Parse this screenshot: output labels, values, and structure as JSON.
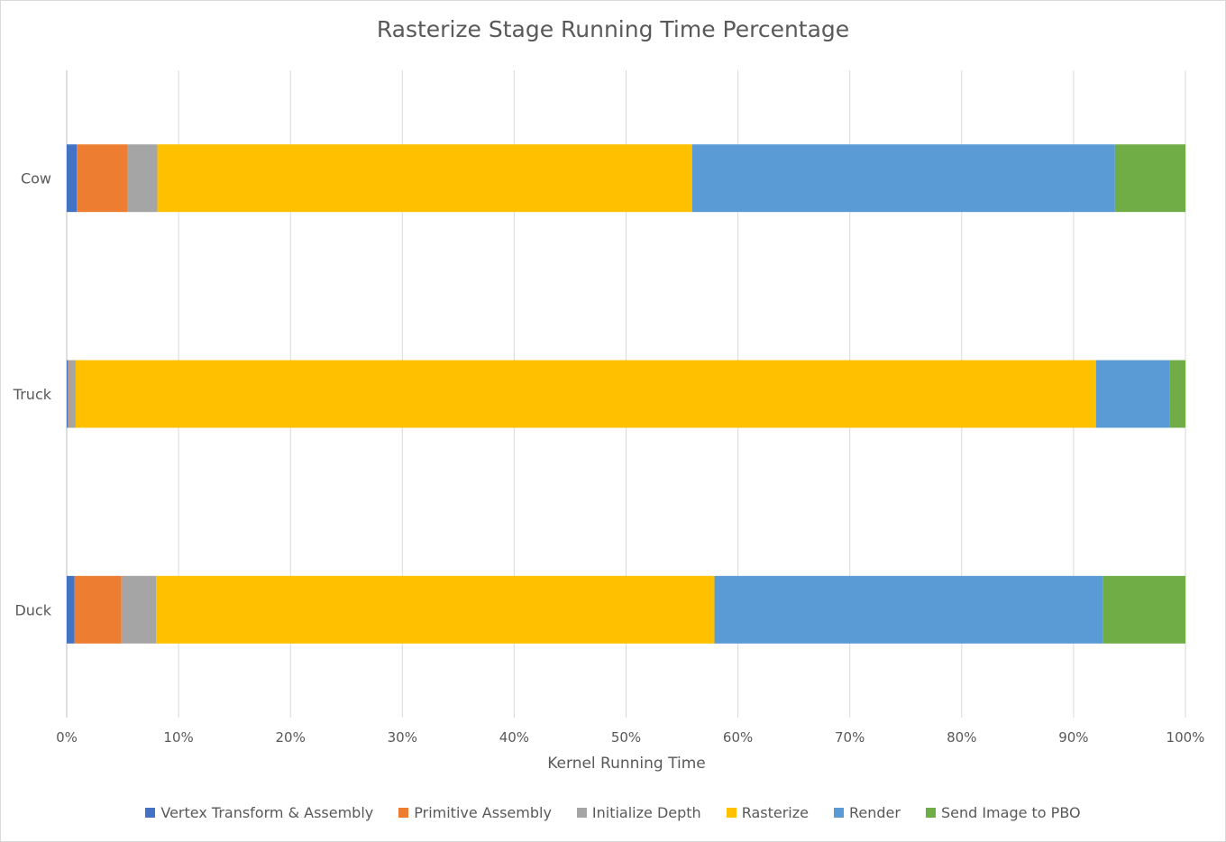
{
  "chart_data": {
    "type": "bar",
    "orientation": "horizontal",
    "stacked": true,
    "percent_stacked": true,
    "title": "Rasterize Stage Running Time Percentage",
    "xlabel": "Kernel Running Time",
    "ylabel": "",
    "xlim": [
      0,
      100
    ],
    "x_ticks": [
      "0%",
      "10%",
      "20%",
      "30%",
      "40%",
      "50%",
      "60%",
      "70%",
      "80%",
      "90%",
      "100%"
    ],
    "categories": [
      "Cow",
      "Truck",
      "Duck"
    ],
    "series": [
      {
        "name": "Vertex Transform & Assembly",
        "color": "#4472c4",
        "values": [
          0.9,
          0.1,
          0.7
        ]
      },
      {
        "name": "Primitive Assembly",
        "color": "#ed7d31",
        "values": [
          4.5,
          0.1,
          4.2
        ]
      },
      {
        "name": "Initialize Depth",
        "color": "#a5a5a5",
        "values": [
          2.7,
          0.6,
          3.1
        ]
      },
      {
        "name": "Rasterize",
        "color": "#ffc000",
        "values": [
          47.8,
          91.2,
          49.9
        ]
      },
      {
        "name": "Render",
        "color": "#5b9bd5",
        "values": [
          37.8,
          6.6,
          34.7
        ]
      },
      {
        "name": "Send Image to PBO",
        "color": "#70ad47",
        "values": [
          6.3,
          1.4,
          7.4
        ]
      }
    ],
    "grid": true,
    "legend_position": "bottom"
  }
}
